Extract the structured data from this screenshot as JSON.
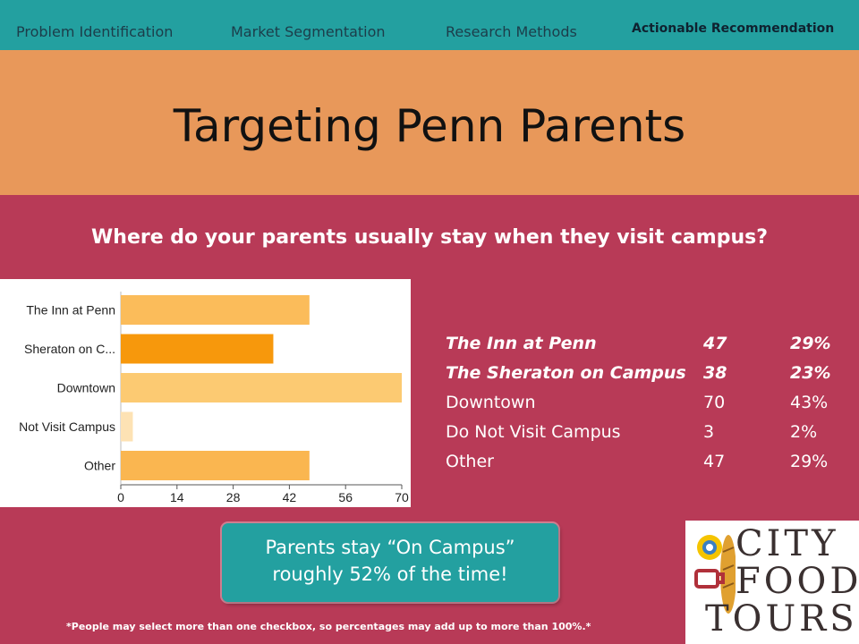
{
  "nav": {
    "tabs": [
      "Problem Identification",
      "Market Segmentation",
      "Research Methods",
      "Actionable Recommendation"
    ],
    "active": "Actionable Recommendation"
  },
  "slide": {
    "title": "Targeting Penn Parents",
    "question": "Where do your parents usually stay when they visit campus?"
  },
  "chart_data": {
    "type": "bar",
    "orientation": "horizontal",
    "categories": [
      "The Inn at Penn",
      "Sheraton on C...",
      "Downtown",
      "Not Visit Campus",
      "Other"
    ],
    "values": [
      47,
      38,
      70,
      3,
      47
    ],
    "xticks": [
      0,
      14,
      28,
      42,
      56,
      70
    ],
    "xlim": [
      0,
      70
    ],
    "colors": [
      "#fbbc5a",
      "#f7980c",
      "#fcca72",
      "#fde2b4",
      "#fab650"
    ]
  },
  "table": {
    "rows": [
      {
        "label": "The Inn at Penn",
        "count": "47",
        "pct": "29%",
        "emphasis": true
      },
      {
        "label": "The Sheraton on Campus",
        "count": "38",
        "pct": "23%",
        "emphasis": true
      },
      {
        "label": "Downtown",
        "count": "70",
        "pct": "43%",
        "emphasis": false
      },
      {
        "label": "Do Not Visit Campus",
        "count": "3",
        "pct": "2%",
        "emphasis": false
      },
      {
        "label": "Other",
        "count": "47",
        "pct": "29%",
        "emphasis": false
      }
    ]
  },
  "callout": {
    "line1": "Parents stay “On Campus”",
    "line2": "roughly 52% of the time!"
  },
  "footnote": "*People may select more than one checkbox, so percentages may add up to more than 100%.*",
  "logo": {
    "words": [
      "CITY",
      "FOOD",
      "TOURS"
    ],
    "icons": [
      "sun-icon",
      "bread-icon",
      "coffee-cup-icon"
    ]
  }
}
